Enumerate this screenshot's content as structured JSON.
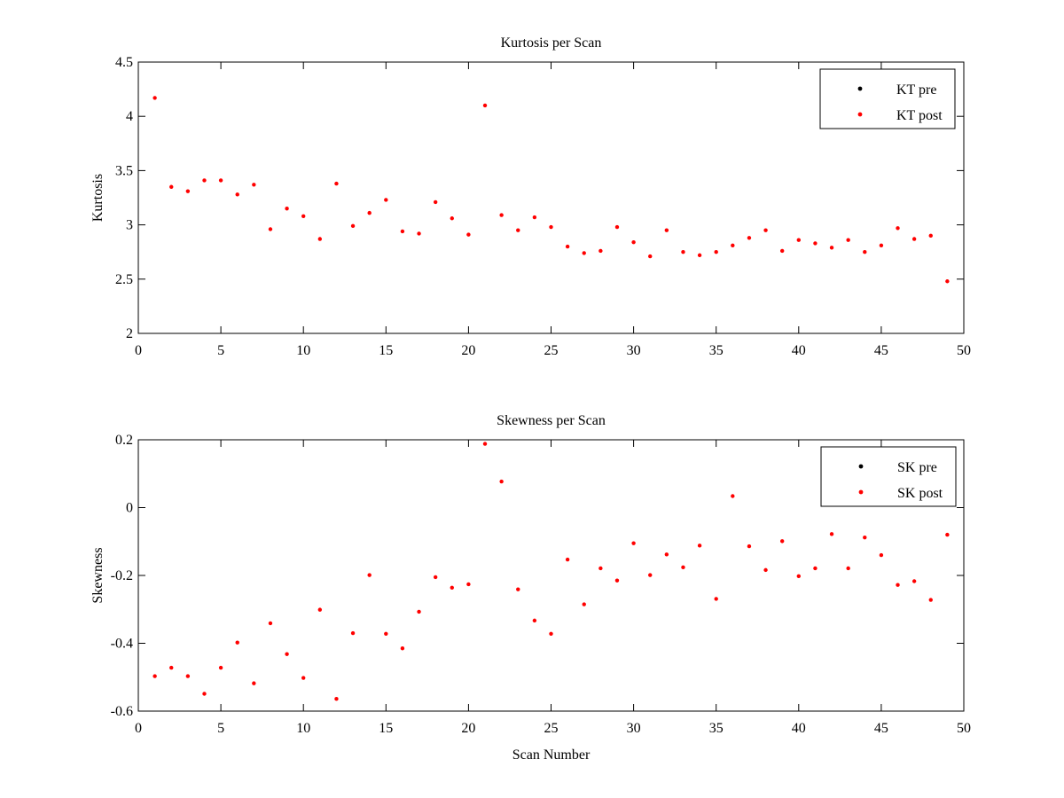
{
  "figure": {
    "background": "#ffffff"
  },
  "chart_data": [
    {
      "type": "scatter",
      "title": "Kurtosis per Scan",
      "xlabel": "",
      "ylabel": "Kurtosis",
      "xlim": [
        0,
        50
      ],
      "ylim": [
        2,
        4.5
      ],
      "xticks": [
        0,
        5,
        10,
        15,
        20,
        25,
        30,
        35,
        40,
        45,
        50
      ],
      "yticks": [
        2,
        2.5,
        3,
        3.5,
        4,
        4.5
      ],
      "xtick_labels": [
        "0",
        "5",
        "10",
        "15",
        "20",
        "25",
        "30",
        "35",
        "40",
        "45",
        "50"
      ],
      "ytick_labels": [
        "2",
        "2.5",
        "3",
        "3.5",
        "4",
        "4.5"
      ],
      "grid": false,
      "legend_position": "top-right",
      "series": [
        {
          "name": "KT pre",
          "color": "#000000",
          "marker": "dot",
          "x": [],
          "y": []
        },
        {
          "name": "KT post",
          "color": "#ff0000",
          "marker": "dot",
          "x": [
            1,
            2,
            3,
            4,
            5,
            6,
            7,
            8,
            9,
            10,
            11,
            12,
            13,
            14,
            15,
            16,
            17,
            18,
            19,
            20,
            21,
            22,
            23,
            24,
            25,
            26,
            27,
            28,
            29,
            30,
            31,
            32,
            33,
            34,
            35,
            36,
            37,
            38,
            39,
            40,
            41,
            42,
            43,
            44,
            45,
            46,
            47,
            48,
            49
          ],
          "y": [
            4.17,
            3.35,
            3.31,
            3.41,
            3.41,
            3.28,
            3.37,
            2.96,
            3.15,
            3.08,
            2.87,
            3.38,
            2.99,
            3.11,
            3.23,
            2.94,
            2.92,
            3.21,
            3.06,
            2.91,
            4.1,
            3.09,
            2.95,
            3.07,
            2.98,
            2.8,
            2.74,
            2.76,
            2.98,
            2.84,
            2.71,
            2.95,
            2.75,
            2.72,
            2.75,
            2.81,
            2.88,
            2.95,
            2.76,
            2.86,
            2.83,
            2.79,
            2.86,
            2.75,
            2.81,
            2.97,
            2.87,
            2.9,
            2.48
          ]
        }
      ]
    },
    {
      "type": "scatter",
      "title": "Skewness per Scan",
      "xlabel": "Scan Number",
      "ylabel": "Skewness",
      "xlim": [
        0,
        50
      ],
      "ylim": [
        -0.6,
        0.2
      ],
      "xticks": [
        0,
        5,
        10,
        15,
        20,
        25,
        30,
        35,
        40,
        45,
        50
      ],
      "yticks": [
        -0.6,
        -0.4,
        -0.2,
        0,
        0.2
      ],
      "xtick_labels": [
        "0",
        "5",
        "10",
        "15",
        "20",
        "25",
        "30",
        "35",
        "40",
        "45",
        "50"
      ],
      "ytick_labels": [
        "-0.6",
        "-0.4",
        "-0.2",
        "0",
        "0.2"
      ],
      "grid": false,
      "legend_position": "top-right",
      "series": [
        {
          "name": "SK pre",
          "color": "#000000",
          "marker": "dot",
          "x": [],
          "y": []
        },
        {
          "name": "SK post",
          "color": "#ff0000",
          "marker": "dot",
          "x": [
            1,
            2,
            3,
            4,
            5,
            6,
            7,
            8,
            9,
            10,
            11,
            12,
            13,
            14,
            15,
            16,
            17,
            18,
            19,
            20,
            21,
            22,
            23,
            24,
            25,
            26,
            27,
            28,
            29,
            30,
            31,
            32,
            33,
            34,
            35,
            36,
            37,
            38,
            39,
            40,
            41,
            42,
            43,
            44,
            45,
            46,
            47,
            48,
            49
          ],
          "y": [
            -0.497,
            -0.472,
            -0.497,
            -0.549,
            -0.472,
            -0.398,
            -0.518,
            -0.341,
            -0.432,
            -0.502,
            -0.301,
            -0.564,
            -0.37,
            -0.199,
            -0.372,
            -0.415,
            -0.307,
            -0.205,
            -0.236,
            -0.226,
            0.188,
            0.077,
            -0.241,
            -0.333,
            -0.372,
            -0.153,
            -0.285,
            -0.179,
            -0.215,
            -0.105,
            -0.199,
            -0.138,
            -0.176,
            -0.112,
            -0.269,
            0.034,
            -0.114,
            -0.184,
            -0.099,
            -0.202,
            -0.179,
            -0.078,
            -0.179,
            -0.088,
            -0.14,
            -0.228,
            -0.217,
            -0.272,
            -0.08
          ]
        }
      ]
    }
  ]
}
